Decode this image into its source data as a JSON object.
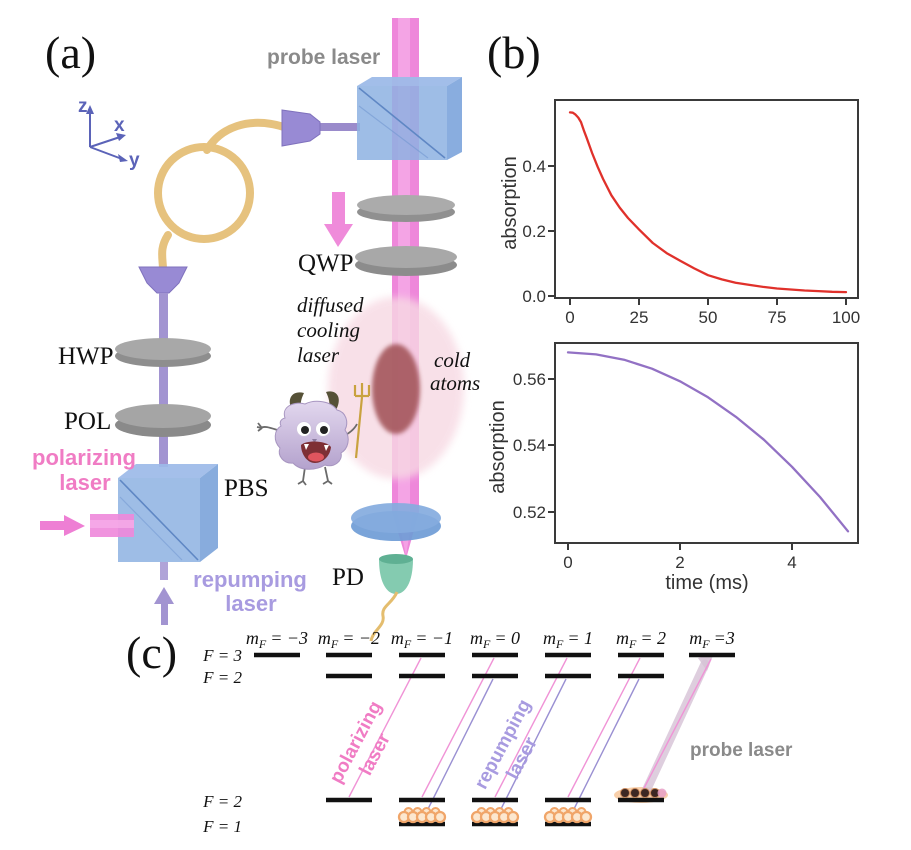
{
  "panels": {
    "a": "(a)",
    "b": "(b)",
    "c": "(c)"
  },
  "panel_a": {
    "labels": {
      "probe_laser": "probe laser",
      "qwp": "QWP",
      "hwp": "HWP",
      "pol": "POL",
      "pbs": "PBS",
      "pd": "PD",
      "diffused_1": "diffused",
      "diffused_2": "cooling",
      "diffused_3": "laser",
      "cold_1": "cold",
      "cold_2": "atoms",
      "polarizing_1": "polarizing",
      "polarizing_2": "laser",
      "repumping_1": "repumping",
      "repumping_2": "laser",
      "axis_z": "z",
      "axis_x": "x",
      "axis_y": "y"
    }
  },
  "chart_data": [
    {
      "type": "line",
      "title": "",
      "ylabel": "absorption",
      "xlabel": "",
      "series_color": "#e0312b",
      "xticks": [
        "0",
        "25",
        "50",
        "75",
        "100"
      ],
      "yticks": [
        "0.4",
        "0.2",
        "0.0"
      ],
      "xlim": [
        0,
        100
      ],
      "ylim": [
        0,
        0.6
      ],
      "grid": false,
      "points": [
        [
          0,
          0.565
        ],
        [
          1,
          0.564
        ],
        [
          2,
          0.558
        ],
        [
          3,
          0.549
        ],
        [
          4,
          0.535
        ],
        [
          5,
          0.51
        ],
        [
          6,
          0.487
        ],
        [
          8,
          0.44
        ],
        [
          10,
          0.398
        ],
        [
          12,
          0.36
        ],
        [
          15,
          0.31
        ],
        [
          18,
          0.272
        ],
        [
          21,
          0.24
        ],
        [
          25,
          0.205
        ],
        [
          30,
          0.163
        ],
        [
          35,
          0.132
        ],
        [
          40,
          0.108
        ],
        [
          45,
          0.085
        ],
        [
          50,
          0.064
        ],
        [
          55,
          0.051
        ],
        [
          60,
          0.041
        ],
        [
          65,
          0.034
        ],
        [
          70,
          0.028
        ],
        [
          75,
          0.023
        ],
        [
          80,
          0.02
        ],
        [
          85,
          0.017
        ],
        [
          90,
          0.015
        ],
        [
          95,
          0.013
        ],
        [
          100,
          0.012
        ]
      ]
    },
    {
      "type": "line",
      "title": "",
      "ylabel": "absorption",
      "xlabel": "time (ms)",
      "series_color": "#9271c4",
      "xticks": [
        "0",
        "2",
        "4"
      ],
      "yticks": [
        "0.56",
        "0.54",
        "0.52"
      ],
      "xlim": [
        0,
        5
      ],
      "ylim": [
        0.51,
        0.571
      ],
      "grid": false,
      "points": [
        [
          0,
          0.568
        ],
        [
          0.5,
          0.5674
        ],
        [
          1,
          0.5658
        ],
        [
          1.5,
          0.5631
        ],
        [
          2,
          0.5593
        ],
        [
          2.5,
          0.5545
        ],
        [
          3,
          0.5486
        ],
        [
          3.5,
          0.5417
        ],
        [
          4,
          0.5336
        ],
        [
          4.5,
          0.5245
        ],
        [
          5,
          0.5142
        ]
      ]
    }
  ],
  "panel_c": {
    "headers": [
      {
        "base": "m",
        "sub": "F",
        "eq": "= −3"
      },
      {
        "base": "m",
        "sub": "F",
        "eq": "= −2"
      },
      {
        "base": "m",
        "sub": "F",
        "eq": "= −1"
      },
      {
        "base": "m",
        "sub": "F",
        "eq": "= 0"
      },
      {
        "base": "m",
        "sub": "F",
        "eq": "= 1"
      },
      {
        "base": "m",
        "sub": "F",
        "eq": "= 2"
      },
      {
        "base": "m",
        "sub": "F",
        "eq": "=3"
      }
    ],
    "excited_labels": [
      "F = 3",
      "F = 2"
    ],
    "ground_labels": [
      "F = 2",
      "F = 1"
    ],
    "lasers": {
      "polarizing_1": "polarizing",
      "polarizing_2": "laser",
      "repumping_1": "repumping",
      "repumping_2": "laser",
      "probe": "probe laser"
    }
  },
  "colors": {
    "beam_pink": "#ee87da",
    "beam_pink_light": "#f6ade8",
    "beam_purple": "#a294d1",
    "cube_blue": "#8db1e2",
    "disk_gray": "#a8a8a8",
    "fiber_gold": "#e6c27e",
    "pd_green": "#84cbb0",
    "cold_atoms_red": "#a4565c",
    "diffused_pink": "#f7d9e3",
    "text_gray": "#8a8a8a",
    "text_pink": "#f07cc4",
    "text_purple": "#a89be0",
    "axes_blue": "#5b63b8",
    "level_black": "#111111",
    "atom_orange": "#f0a569"
  }
}
